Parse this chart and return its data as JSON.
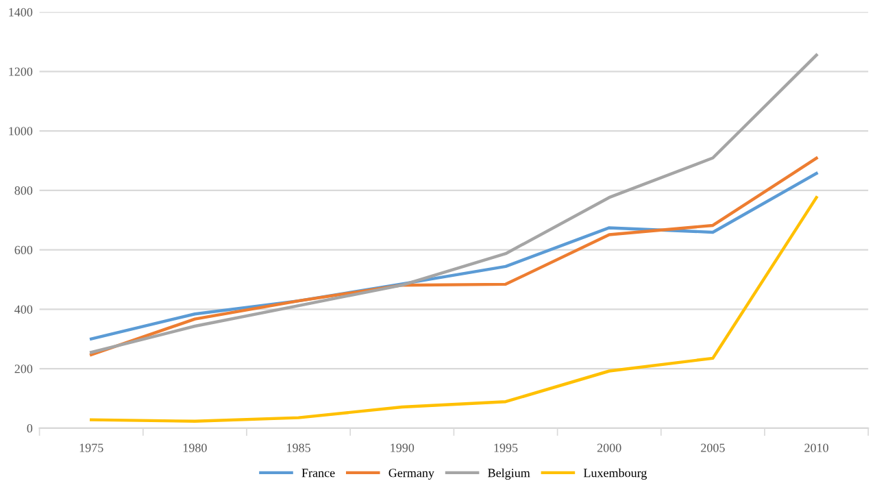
{
  "chart_data": {
    "type": "line",
    "categories": [
      "1975",
      "1980",
      "1985",
      "1990",
      "1995",
      "2000",
      "2005",
      "2010"
    ],
    "series": [
      {
        "name": "France",
        "color": "#5b9bd5",
        "values": [
          300,
          384,
          428,
          485,
          544,
          674,
          659,
          857
        ]
      },
      {
        "name": "Germany",
        "color": "#ed7d31",
        "values": [
          247,
          367,
          428,
          481,
          484,
          651,
          682,
          908
        ]
      },
      {
        "name": "Belgium",
        "color": "#a5a5a5",
        "values": [
          255,
          343,
          412,
          481,
          587,
          776,
          909,
          1255
        ]
      },
      {
        "name": "Luxembourg",
        "color": "#ffc000",
        "values": [
          28,
          23,
          35,
          71,
          89,
          192,
          235,
          776
        ]
      }
    ],
    "ylim": [
      0,
      1400
    ],
    "yticks": [
      0,
      200,
      400,
      600,
      800,
      1000,
      1200,
      1400
    ],
    "grid": "y",
    "legend": "bottom",
    "marker": "none",
    "line_style": "solid"
  }
}
